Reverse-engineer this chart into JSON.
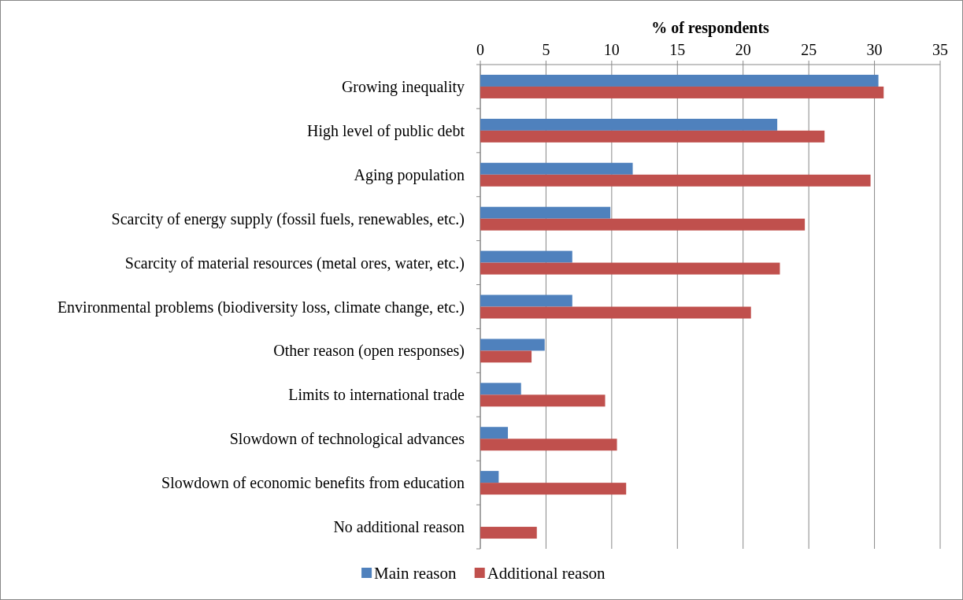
{
  "chart_data": {
    "type": "bar",
    "orientation": "horizontal",
    "xlabel": "% of respondents",
    "categories": [
      "Growing inequality",
      "High level of public debt",
      "Aging population",
      "Scarcity of energy supply (fossil fuels, renewables, etc.)",
      "Scarcity of material resources (metal ores, water, etc.)",
      "Environmental problems (biodiversity loss, climate change, etc.)",
      "Other reason (open responses)",
      "Limits to international trade",
      "Slowdown of technological advances",
      "Slowdown of economic benefits from education",
      "No additional reason"
    ],
    "series": [
      {
        "name": "Main reason",
        "color": "#4f81bd",
        "values": [
          30.3,
          22.6,
          11.6,
          9.9,
          7.0,
          7.0,
          4.9,
          3.1,
          2.1,
          1.4,
          null
        ]
      },
      {
        "name": "Additional reason",
        "color": "#c0504d",
        "values": [
          30.7,
          26.2,
          29.7,
          24.7,
          22.8,
          20.6,
          3.9,
          9.5,
          10.4,
          11.1,
          4.3
        ]
      }
    ],
    "xlim": [
      0,
      35
    ],
    "xticks": [
      0,
      5,
      10,
      15,
      20,
      25,
      30,
      35
    ],
    "grid": "x",
    "legend": "bottom"
  }
}
